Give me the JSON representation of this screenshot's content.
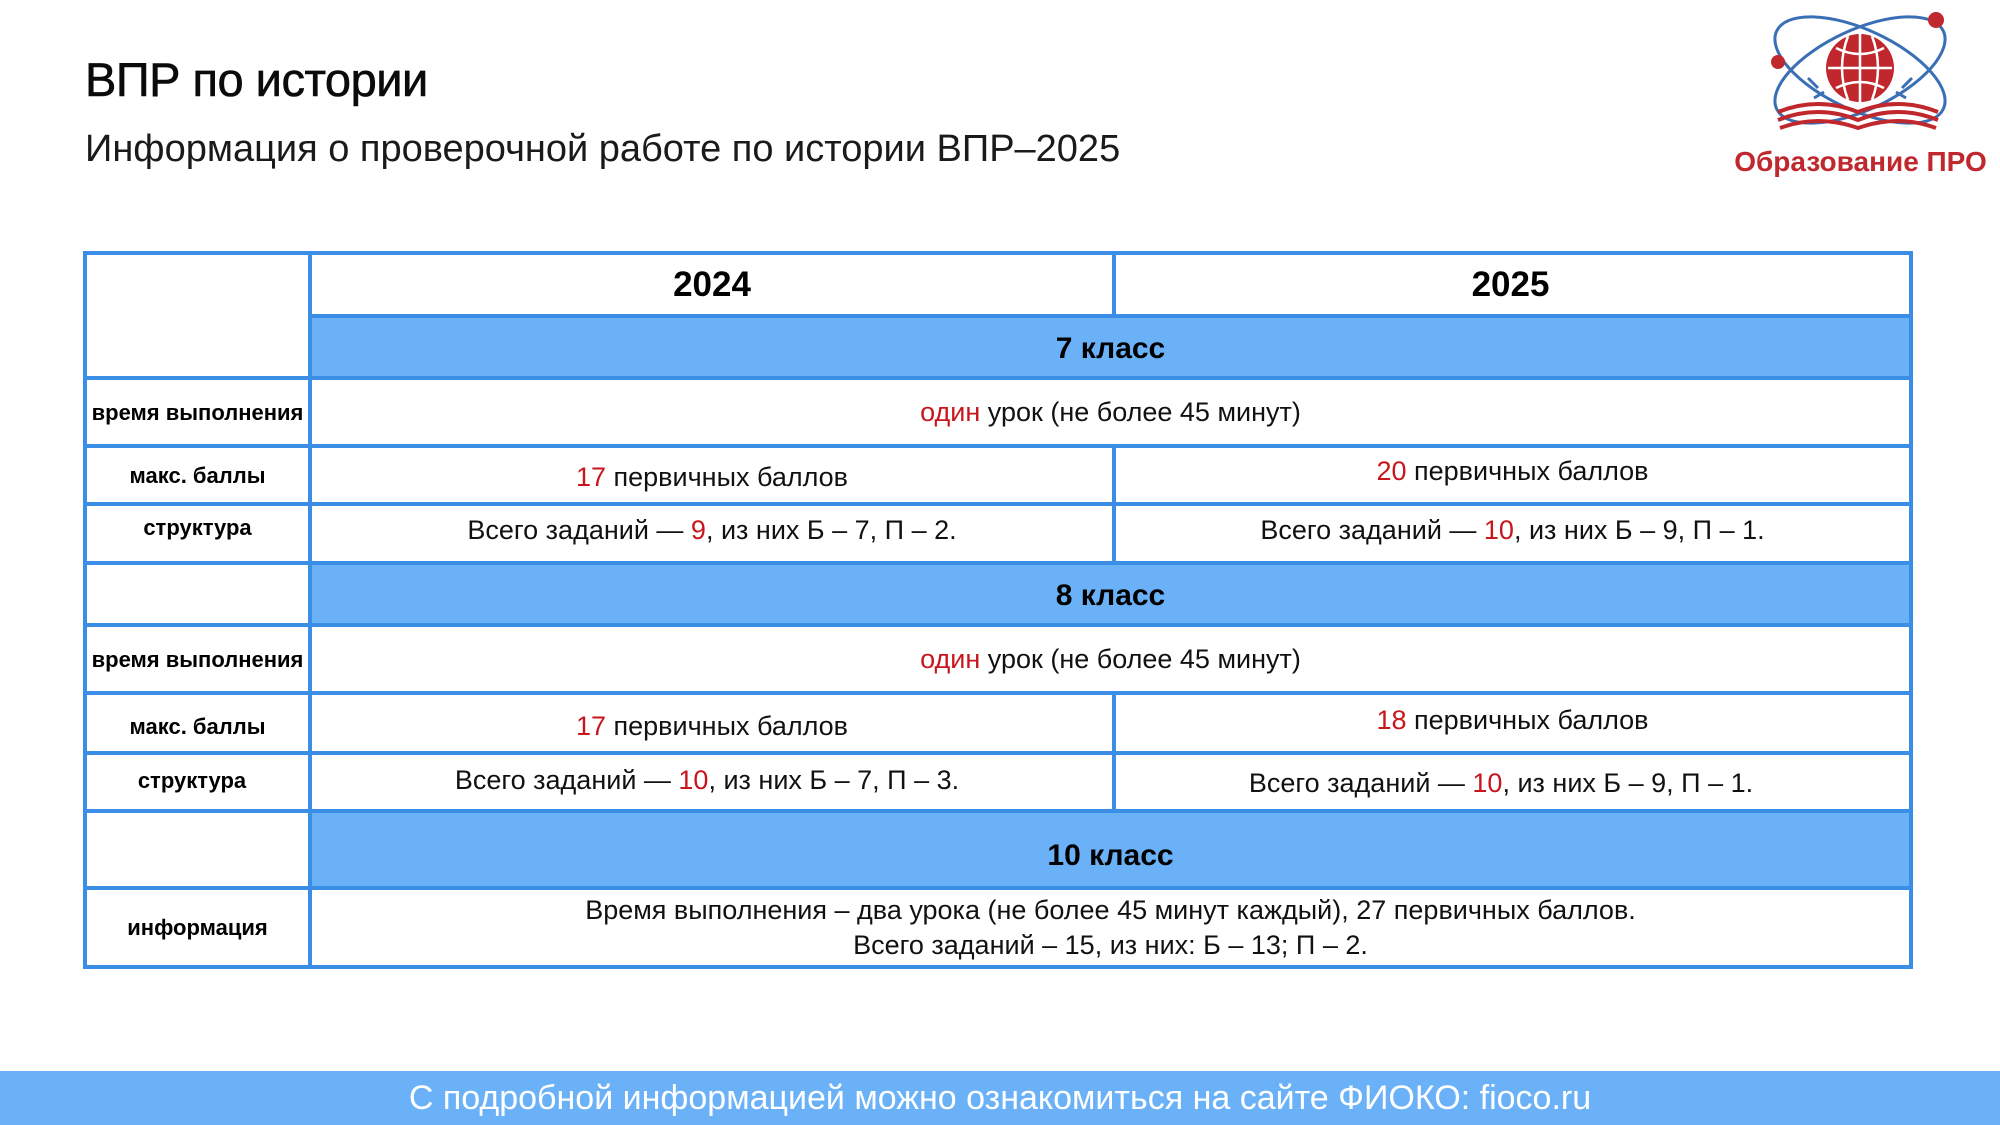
{
  "title": "ВПР по истории",
  "subtitle": "Информация о проверочной работе по истории ВПР–2025",
  "logo": {
    "text": "Образование ПРО",
    "colors": {
      "red": "#c0282e",
      "blue": "#3a6fb5"
    }
  },
  "table": {
    "years": [
      "2024",
      "2025"
    ],
    "sections": {
      "grade7": {
        "label": "7 класс",
        "time_label": "время выполнения",
        "time": {
          "red": "один",
          "rest": " урок (не более 45 минут)"
        },
        "score_label": "макс. баллы",
        "score_2024": {
          "red": "17",
          "rest": " первичных баллов"
        },
        "score_2025": {
          "red": "20",
          "rest": " первичных баллов"
        },
        "structure_label": "структура",
        "structure_2024": {
          "pre": "Всего заданий — ",
          "red": "9",
          "rest": ", из них Б – 7, П – 2."
        },
        "structure_2025": {
          "pre": "Всего заданий — ",
          "red": "10",
          "rest": ", из них Б – 9, П – 1."
        }
      },
      "grade8": {
        "label": "8 класс",
        "time_label": "время выполнения",
        "time": {
          "red": "один",
          "rest": " урок (не более 45 минут)"
        },
        "score_label": "макс. баллы",
        "score_2024": {
          "red": "17",
          "rest": " первичных баллов"
        },
        "score_2025": {
          "red": "18",
          "rest": " первичных баллов"
        },
        "structure_label": "структура",
        "structure_2024": {
          "pre": "Всего заданий — ",
          "red": "10",
          "rest": ", из них Б – 7, П – 3."
        },
        "structure_2025": {
          "pre": "Всего заданий — ",
          "red": "10",
          "rest": ", из них Б – 9, П – 1."
        }
      },
      "grade10": {
        "label": "10 класс",
        "info_label": "информация",
        "info_line1": "Время выполнения – два урока (не более 45 минут каждый), 27 первичных баллов.",
        "info_line2": "Всего заданий – 15, из них: Б – 13; П – 2."
      }
    }
  },
  "footer": "С подробной информацией можно ознакомиться на сайте ФИОКО: fioco.ru",
  "colors": {
    "border": "#3a8ee6",
    "band": "#6ab1f8",
    "accent_red": "#c8161d",
    "footer_bg": "#6ab1f8"
  }
}
